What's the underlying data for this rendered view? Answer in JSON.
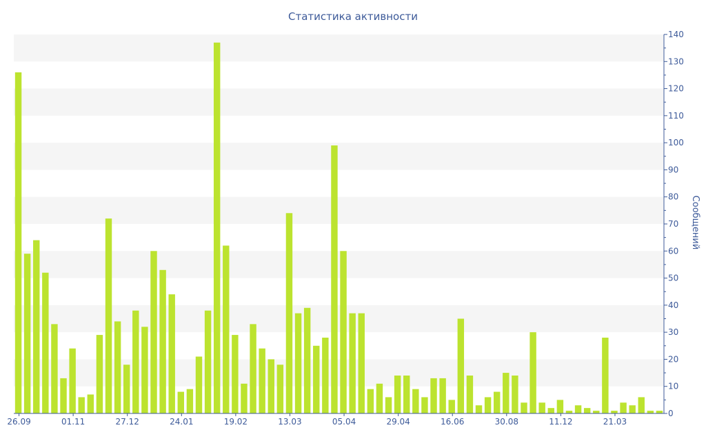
{
  "chart_data": {
    "type": "bar",
    "title": "Статистика активности",
    "ylabel": "Сообщений",
    "xlabel": "",
    "ylim": [
      0,
      140
    ],
    "y_ticks": [
      0,
      10,
      20,
      30,
      40,
      50,
      60,
      70,
      80,
      90,
      100,
      110,
      120,
      130,
      140
    ],
    "y_axis_side": "right",
    "grid": "alternating horizontal bands",
    "bar_color": "#bce32f",
    "x_tick_labels": [
      "26.09",
      "01.11",
      "27.12",
      "24.01",
      "19.02",
      "13.03",
      "05.04",
      "29.04",
      "16.06",
      "30.08",
      "11.12",
      "21.03"
    ],
    "values": [
      126,
      59,
      64,
      52,
      33,
      13,
      24,
      6,
      7,
      29,
      72,
      34,
      18,
      38,
      32,
      60,
      53,
      44,
      8,
      9,
      21,
      38,
      137,
      62,
      29,
      11,
      33,
      24,
      20,
      18,
      74,
      37,
      39,
      25,
      28,
      99,
      60,
      37,
      37,
      9,
      11,
      6,
      14,
      14,
      9,
      6,
      13,
      13,
      5,
      35,
      14,
      3,
      6,
      8,
      15,
      14,
      4,
      30,
      4,
      2,
      5,
      1,
      3,
      2,
      1,
      28,
      1,
      4,
      3,
      6,
      1,
      1
    ]
  }
}
